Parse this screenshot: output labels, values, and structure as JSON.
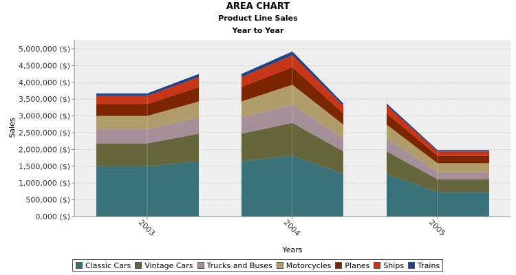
{
  "chart_data": {
    "type": "area",
    "title": "AREA CHART",
    "subtitle": "Product Line Sales",
    "subtitle2": "Year to Year",
    "xlabel": "Years",
    "ylabel": "Sales",
    "ylim": [
      0,
      5000000
    ],
    "yticks": [
      0,
      500000,
      1000000,
      1500000,
      2000000,
      2500000,
      3000000,
      3500000,
      4000000,
      4500000,
      5000000
    ],
    "ytick_labels": [
      "0,000 ($)",
      "500,000 ($)",
      "1,000,000 ($)",
      "1,500,000 ($)",
      "2,000,000 ($)",
      "2,500,000 ($)",
      "3,000,000 ($)",
      "3,500,000 ($)",
      "4,000,000 ($)",
      "4,500,000 ($)",
      "5,000,000 ($)"
    ],
    "categories": [
      "2003",
      "2004",
      "2005"
    ],
    "stacked": true,
    "grid": true,
    "legend_position": "bottom",
    "series": [
      {
        "name": "Classic Cars",
        "color": "#3A727A",
        "points": [
          [
            1500000,
            1500000,
            1650000
          ],
          [
            1650000,
            1820000,
            1270000
          ],
          [
            1270000,
            720000,
            720000
          ]
        ]
      },
      {
        "name": "Vintage Cars",
        "color": "#66663D",
        "points": [
          [
            680000,
            680000,
            820000
          ],
          [
            820000,
            970000,
            670000
          ],
          [
            670000,
            390000,
            390000
          ]
        ]
      },
      {
        "name": "Trucks and Buses",
        "color": "#A59099",
        "points": [
          [
            420000,
            420000,
            480000
          ],
          [
            480000,
            540000,
            380000
          ],
          [
            380000,
            210000,
            210000
          ]
        ]
      },
      {
        "name": "Motorcycles",
        "color": "#B19C6C",
        "points": [
          [
            400000,
            400000,
            480000
          ],
          [
            480000,
            600000,
            420000
          ],
          [
            420000,
            270000,
            270000
          ]
        ]
      },
      {
        "name": "Planes",
        "color": "#7B2600",
        "points": [
          [
            350000,
            350000,
            430000
          ],
          [
            430000,
            520000,
            330000
          ],
          [
            330000,
            220000,
            220000
          ]
        ]
      },
      {
        "name": "Ships",
        "color": "#C83618",
        "points": [
          [
            250000,
            250000,
            300000
          ],
          [
            300000,
            360000,
            240000
          ],
          [
            240000,
            130000,
            130000
          ]
        ]
      },
      {
        "name": "Trains",
        "color": "#1C4388",
        "points": [
          [
            70000,
            70000,
            90000
          ],
          [
            90000,
            110000,
            60000
          ],
          [
            60000,
            40000,
            40000
          ]
        ]
      }
    ]
  }
}
